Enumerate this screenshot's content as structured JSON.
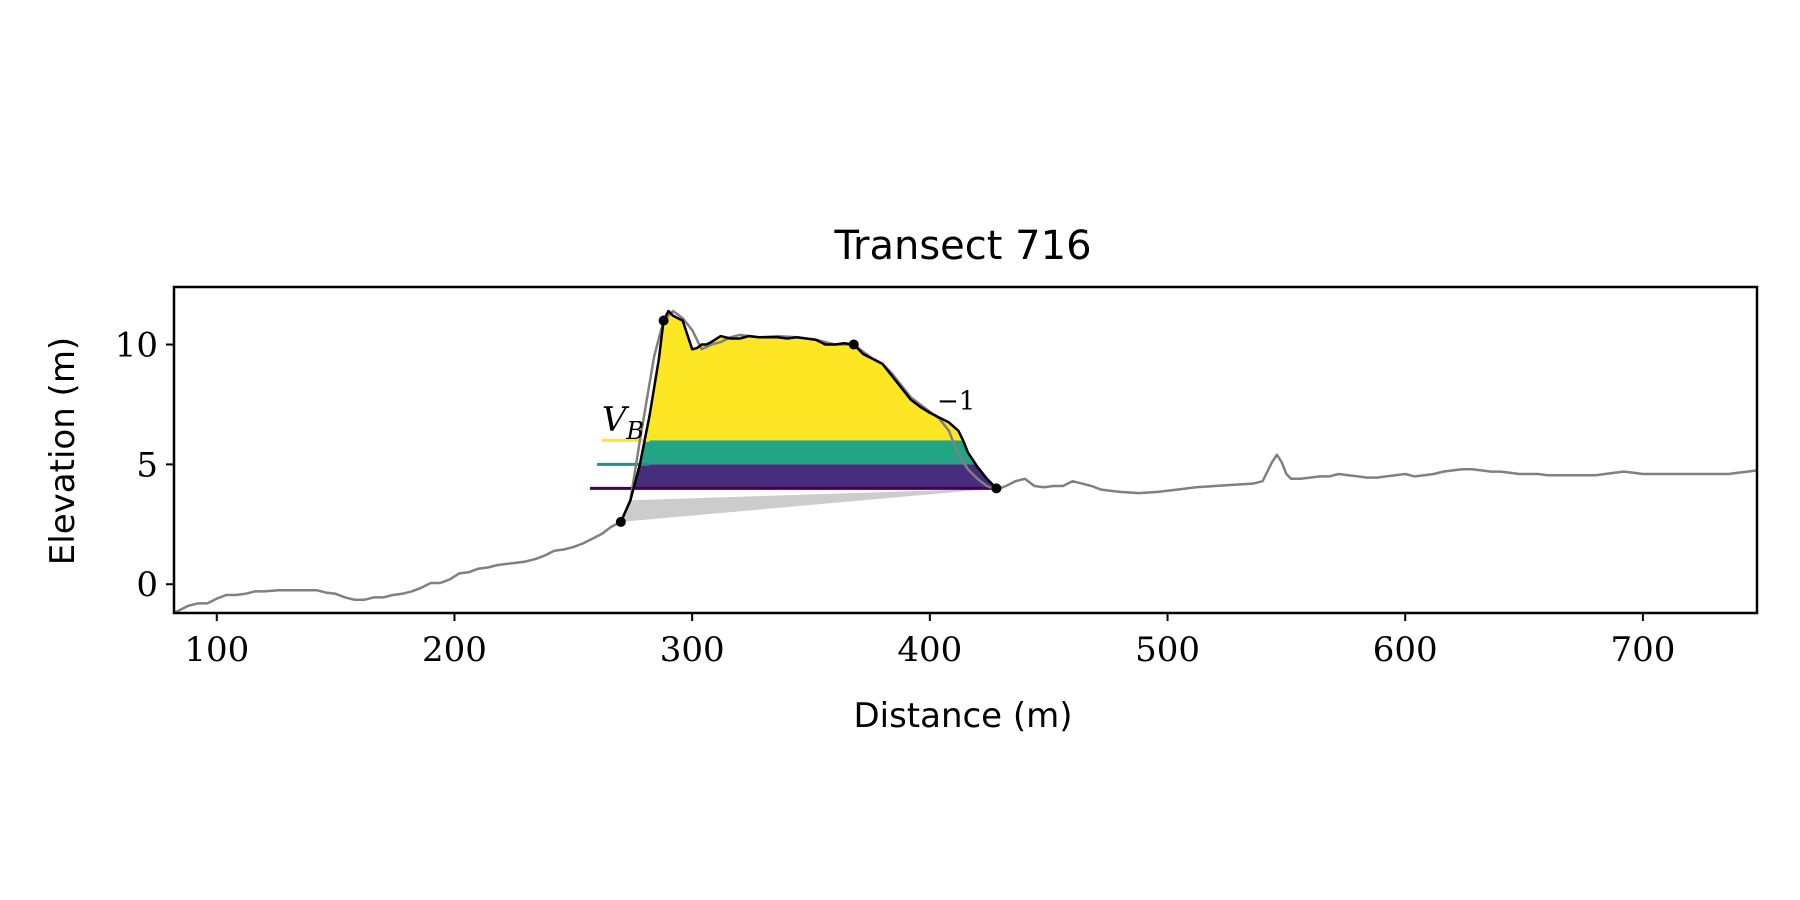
{
  "chart_data": {
    "type": "line",
    "title": "Transect 716",
    "xlabel": "Distance (m)",
    "ylabel": "Elevation (m)",
    "xlim": [
      82,
      748
    ],
    "ylim": [
      -1.2,
      12.4
    ],
    "xticks": [
      100,
      200,
      300,
      400,
      500,
      600,
      700
    ],
    "yticks": [
      0,
      5,
      10
    ],
    "grid": false,
    "annotations": [
      {
        "text": "V",
        "sub": "B",
        "x": 262,
        "y": 6.4
      },
      {
        "text": "−1",
        "x": 403,
        "y": 7.3
      }
    ],
    "colors": {
      "profile": "#808080",
      "dune_outline": "#000000",
      "volume_top": "#fde725",
      "volume_mid": "#21a585",
      "volume_low": "#472d7b",
      "baseline_fill": "#cccccc",
      "level_line_top": "#fde725",
      "level_line_mid": "#21918c",
      "level_line_low": "#440154"
    },
    "series": [
      {
        "role": "profile",
        "x": [
          82,
          88,
          92,
          96,
          100,
          104,
          108,
          112,
          116,
          120,
          126,
          132,
          138,
          142,
          146,
          150,
          154,
          158,
          162,
          166,
          170,
          174,
          178,
          182,
          186,
          190,
          194,
          198,
          202,
          206,
          210,
          214,
          218,
          222,
          226,
          230,
          234,
          238,
          242,
          246,
          250,
          254,
          258,
          262,
          266,
          270,
          274,
          278,
          284,
          288,
          292,
          296,
          300,
          304,
          308,
          312,
          316,
          320,
          328,
          336,
          344,
          352,
          360,
          368,
          372,
          376,
          380,
          384,
          388,
          392,
          396,
          400,
          404,
          408,
          412,
          416,
          420,
          424,
          428,
          432,
          436,
          440,
          444,
          448,
          452,
          456,
          460,
          464,
          468,
          472,
          476,
          480,
          488,
          496,
          504,
          512,
          520,
          528,
          536,
          540,
          544,
          546,
          548,
          550,
          552,
          556,
          560,
          564,
          568,
          572,
          576,
          580,
          584,
          588,
          592,
          596,
          600,
          604,
          608,
          612,
          616,
          620,
          624,
          628,
          632,
          636,
          640,
          644,
          648,
          652,
          656,
          660,
          664,
          668,
          672,
          676,
          680,
          684,
          688,
          692,
          696,
          700,
          704,
          708,
          712,
          716,
          720,
          724,
          728,
          732,
          736,
          740,
          744,
          748
        ],
        "y": [
          -1.2,
          -0.9,
          -0.8,
          -0.8,
          -0.6,
          -0.45,
          -0.45,
          -0.4,
          -0.3,
          -0.3,
          -0.25,
          -0.25,
          -0.25,
          -0.25,
          -0.35,
          -0.4,
          -0.55,
          -0.65,
          -0.65,
          -0.55,
          -0.55,
          -0.45,
          -0.4,
          -0.3,
          -0.15,
          0.05,
          0.05,
          0.2,
          0.45,
          0.5,
          0.65,
          0.7,
          0.8,
          0.85,
          0.9,
          0.95,
          1.05,
          1.2,
          1.4,
          1.45,
          1.55,
          1.7,
          1.9,
          2.1,
          2.4,
          2.6,
          3.5,
          6.0,
          9.5,
          11.0,
          11.4,
          11.1,
          10.6,
          9.8,
          10.0,
          10.1,
          10.3,
          10.4,
          10.3,
          10.35,
          10.3,
          10.2,
          10.0,
          10.0,
          9.7,
          9.4,
          9.2,
          8.8,
          8.3,
          7.8,
          7.5,
          7.2,
          6.9,
          6.4,
          5.4,
          4.8,
          4.4,
          4.1,
          3.95,
          4.1,
          4.3,
          4.4,
          4.1,
          4.05,
          4.1,
          4.1,
          4.3,
          4.2,
          4.1,
          3.95,
          3.9,
          3.85,
          3.8,
          3.85,
          3.95,
          4.05,
          4.1,
          4.15,
          4.2,
          4.3,
          5.1,
          5.4,
          5.1,
          4.6,
          4.4,
          4.4,
          4.45,
          4.5,
          4.5,
          4.6,
          4.55,
          4.5,
          4.45,
          4.45,
          4.5,
          4.55,
          4.6,
          4.5,
          4.55,
          4.6,
          4.7,
          4.75,
          4.8,
          4.8,
          4.75,
          4.7,
          4.7,
          4.65,
          4.6,
          4.6,
          4.6,
          4.55,
          4.55,
          4.55,
          4.55,
          4.55,
          4.55,
          4.6,
          4.65,
          4.7,
          4.65,
          4.6,
          4.6,
          4.6,
          4.6,
          4.6,
          4.6,
          4.6,
          4.6,
          4.6,
          4.6,
          4.65,
          4.7,
          4.75
        ]
      },
      {
        "role": "dune_outline",
        "x": [
          270,
          274,
          278,
          282,
          286,
          288,
          290,
          292,
          294,
          296,
          298,
          300,
          302,
          304,
          306,
          308,
          312,
          316,
          320,
          324,
          328,
          332,
          336,
          340,
          344,
          348,
          352,
          356,
          360,
          364,
          368,
          370,
          372,
          376,
          380,
          384,
          388,
          392,
          396,
          400,
          404,
          408,
          412,
          414,
          416,
          420,
          424,
          428
        ],
        "y": [
          2.6,
          3.5,
          5.0,
          7.0,
          9.4,
          11.0,
          11.4,
          11.2,
          11.1,
          11.0,
          10.4,
          9.8,
          9.85,
          10.0,
          10.0,
          10.1,
          10.35,
          10.25,
          10.25,
          10.35,
          10.3,
          10.3,
          10.3,
          10.25,
          10.3,
          10.25,
          10.2,
          10.0,
          10.0,
          10.05,
          10.0,
          9.8,
          9.6,
          9.4,
          9.2,
          8.7,
          8.2,
          7.7,
          7.4,
          7.15,
          6.95,
          6.75,
          6.4,
          6.0,
          5.5,
          4.9,
          4.4,
          4.0
        ]
      }
    ],
    "points": [
      {
        "x": 270,
        "y": 2.6
      },
      {
        "x": 288,
        "y": 11.0
      },
      {
        "x": 368,
        "y": 10.0
      },
      {
        "x": 428,
        "y": 4.0
      }
    ],
    "baseline": {
      "x": [
        270,
        428
      ],
      "y": [
        2.6,
        4.0
      ]
    },
    "levels": [
      {
        "name": "top",
        "y": 6.0,
        "line_x": [
          262,
          282
        ]
      },
      {
        "name": "mid",
        "y": 5.0,
        "line_x": [
          260,
          282
        ]
      },
      {
        "name": "low",
        "y": 4.0,
        "line_x": [
          257,
          428
        ]
      }
    ]
  }
}
